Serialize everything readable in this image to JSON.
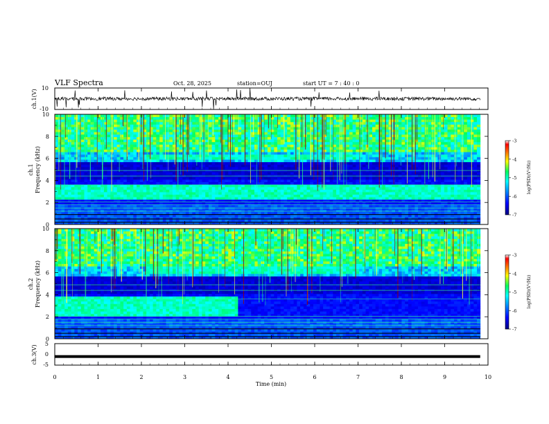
{
  "header": {
    "title": "VLF Spectra",
    "date": "Oct. 28, 2025",
    "station": "station=OUJ",
    "start_ut": "start UT =  7 : 40 : 0"
  },
  "chart_data": [
    {
      "type": "line",
      "panel": "waveform-ch1",
      "ylabel": "ch.1(V)",
      "ylim": [
        -10,
        10
      ],
      "yticks": [
        "10",
        "-10"
      ],
      "xlim": [
        0,
        10
      ],
      "baseline": 0
    },
    {
      "type": "heatmap",
      "panel": "spectrogram-ch1",
      "ylabel_line1": "ch.1",
      "ylabel_line2": "Frequency (kHz)",
      "ylim": [
        0,
        10
      ],
      "yticks": [
        "0",
        "2",
        "4",
        "6",
        "8",
        "10"
      ],
      "xlim": [
        0,
        10
      ],
      "colorbar": {
        "label": "log(PSD)(V²/Hz)",
        "range": [
          -7,
          -3
        ],
        "ticks": [
          "-3",
          "-4",
          "-5",
          "-6",
          "-7"
        ]
      },
      "bands": [
        {
          "freq_khz": [
            2.2,
            3.5
          ],
          "t_min": [
            0,
            9.8
          ]
        },
        {
          "freq_khz": [
            5.8,
            6.3
          ],
          "t_min": [
            2.1,
            7.0
          ]
        }
      ]
    },
    {
      "type": "heatmap",
      "panel": "spectrogram-ch2",
      "ylabel_line1": "ch.2",
      "ylabel_line2": "Frequency (kHz)",
      "ylim": [
        0,
        10
      ],
      "yticks": [
        "0",
        "2",
        "4",
        "6",
        "8",
        "10"
      ],
      "xlim": [
        0,
        10
      ],
      "colorbar": {
        "label": "log(PSD)(V²/Hz)",
        "range": [
          -7,
          -3
        ],
        "ticks": [
          "-3",
          "-4",
          "-5",
          "-6",
          "-7"
        ]
      },
      "bands": [
        {
          "freq_khz": [
            2.0,
            3.8
          ],
          "t_min": [
            0,
            4.2
          ]
        },
        {
          "freq_khz": [
            5.7,
            6.4
          ],
          "t_min": [
            2.1,
            7.0
          ]
        }
      ]
    },
    {
      "type": "line",
      "panel": "waveform-ch3",
      "ylabel": "ch.3(V)",
      "ylim": [
        -5,
        5
      ],
      "yticks": [
        "5",
        "0",
        "-5"
      ],
      "xlim": [
        0,
        10
      ],
      "baseline": -1
    }
  ],
  "xaxis": {
    "label": "Time (min)",
    "range": [
      0,
      10
    ],
    "ticks": [
      "0",
      "1",
      "2",
      "3",
      "4",
      "5",
      "6",
      "7",
      "8",
      "9",
      "10"
    ],
    "data_end_min": 9.82
  },
  "colors": {
    "colormap": [
      "#00008b",
      "#0000ff",
      "#0080ff",
      "#00ffff",
      "#00ff80",
      "#ffff00",
      "#ff8000",
      "#ff0000"
    ],
    "axis": "#000000",
    "background": "#ffffff"
  }
}
